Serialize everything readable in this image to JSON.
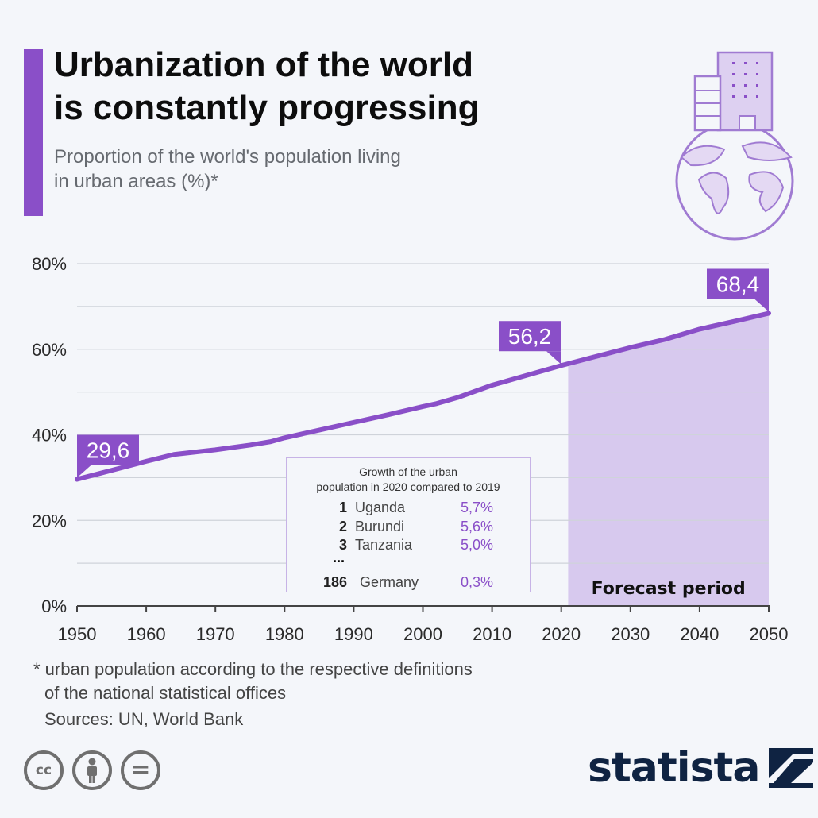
{
  "header": {
    "title_line1": "Urbanization of the world",
    "title_line2": "is constantly progressing",
    "subtitle_line1": "Proportion of the world's population living",
    "subtitle_line2": "in urban areas (%)*"
  },
  "colors": {
    "accent": "#8a4fc8",
    "forecast_fill": "#d7c9ee",
    "grid": "#cfd3da",
    "brand": "#0f2342"
  },
  "icons": [
    "globe-with-buildings-icon",
    "cc-icon",
    "by-icon",
    "nd-icon",
    "statista-logo-icon"
  ],
  "chart_data": {
    "type": "line",
    "ylim": [
      0,
      80
    ],
    "xlim": [
      1950,
      2050
    ],
    "y_tick_values": [
      0,
      20,
      40,
      60,
      80
    ],
    "y_tick_labels": [
      "0%",
      "20%",
      "40%",
      "60%",
      "80%"
    ],
    "x_ticks": [
      1950,
      1960,
      1970,
      1980,
      1990,
      2000,
      2010,
      2020,
      2030,
      2040,
      2050
    ],
    "grid": "horizontal, every 10%",
    "series": [
      {
        "x": [
          1950,
          1955,
          1960,
          1964,
          1970,
          1975,
          1978,
          1980,
          1985,
          1990,
          1995,
          2000,
          2002,
          2005,
          2010,
          2015,
          2020,
          2025,
          2030,
          2035,
          2040,
          2045,
          2050
        ],
        "y": [
          29.6,
          31.7,
          33.8,
          35.4,
          36.5,
          37.6,
          38.4,
          39.3,
          41.1,
          42.9,
          44.7,
          46.6,
          47.3,
          48.7,
          51.6,
          53.9,
          56.2,
          58.3,
          60.4,
          62.3,
          64.7,
          66.5,
          68.4
        ]
      }
    ],
    "callouts": [
      {
        "x": 1950,
        "label": "29,6"
      },
      {
        "x": 2020,
        "label": "56,2"
      },
      {
        "x": 2050,
        "label": "68,4"
      }
    ],
    "forecast": {
      "from": 2021,
      "to": 2050,
      "label": "Forecast period"
    }
  },
  "growth_box": {
    "title_line1": "Growth of the urban",
    "title_line2": "population in 2020 compared to 2019",
    "rows": [
      {
        "rank": "1",
        "country": "Uganda",
        "value": "5,7%"
      },
      {
        "rank": "2",
        "country": "Burundi",
        "value": "5,6%"
      },
      {
        "rank": "3",
        "country": "Tanzania",
        "value": "5,0%"
      },
      {
        "rank": "186",
        "country": "Germany",
        "value": "0,3%"
      }
    ],
    "ellipsis": "..."
  },
  "footer": {
    "footnote_line1": "* urban population according to the respective definitions",
    "footnote_line2": "of the national statistical offices",
    "sources": "Sources: UN, World Bank",
    "license_cc": "cc",
    "license_nd": "=",
    "brand": "statista"
  }
}
